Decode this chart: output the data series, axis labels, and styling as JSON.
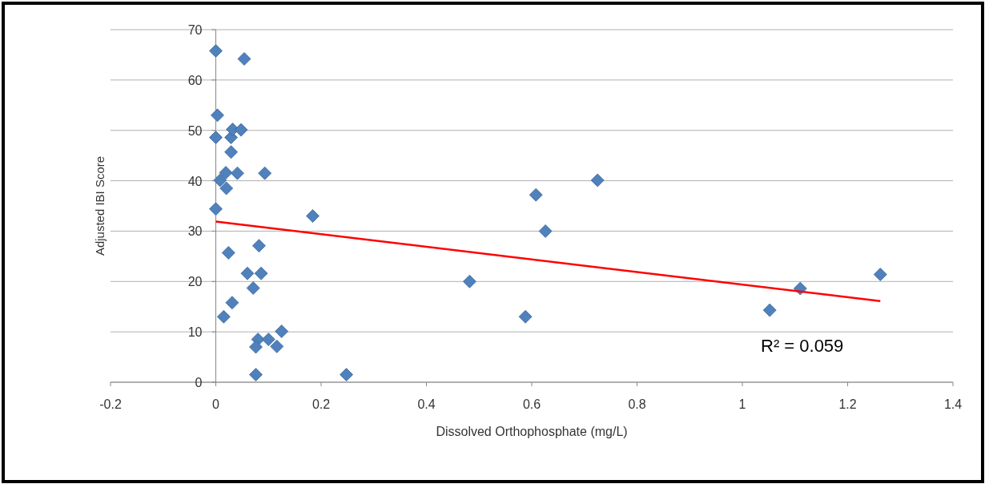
{
  "chart_data": {
    "type": "scatter",
    "xlabel": "Dissolved Orthophosphate (mg/L)",
    "ylabel": "Adjusted IBI Score",
    "xlim": [
      -0.2,
      1.4
    ],
    "xticks": [
      -0.2,
      0,
      0.2,
      0.4,
      0.6,
      0.8,
      1,
      1.2,
      1.4
    ],
    "ylim": [
      0,
      70
    ],
    "yticks": [
      0,
      10,
      20,
      30,
      40,
      50,
      60,
      70
    ],
    "grid": "y",
    "annotations": [
      "R² = 0.059"
    ],
    "series": [
      {
        "color": "#4f81bd",
        "marker": "diamond",
        "x": [
          0,
          0.054,
          0.003,
          0,
          0.029,
          0.032,
          0.048,
          0.029,
          0.019,
          0.041,
          0.093,
          0.008,
          0.02,
          0,
          0.184,
          0.082,
          0.024,
          0.06,
          0.086,
          0.071,
          0.031,
          0.015,
          0.125,
          0.08,
          0.1,
          0.076,
          0.116,
          0.076,
          0.248,
          0.482,
          0.588,
          0.608,
          0.626,
          0.725,
          1.052,
          1.11,
          1.262
        ],
        "values": [
          65.8,
          64.2,
          53,
          48.6,
          48.6,
          50.2,
          50.1,
          45.7,
          41.6,
          41.5,
          41.5,
          40.1,
          38.5,
          34.4,
          33,
          27.1,
          25.7,
          21.6,
          21.6,
          18.7,
          15.8,
          13,
          10.1,
          8.5,
          8.5,
          7,
          7.1,
          1.5,
          1.5,
          20,
          13,
          37.2,
          30,
          40.1,
          14.3,
          18.6,
          21.4
        ]
      },
      {
        "type": "line",
        "color": "#ff0000",
        "marker": "none",
        "x": [
          0,
          1.262
        ],
        "values": [
          31.9,
          16.1
        ]
      }
    ]
  }
}
